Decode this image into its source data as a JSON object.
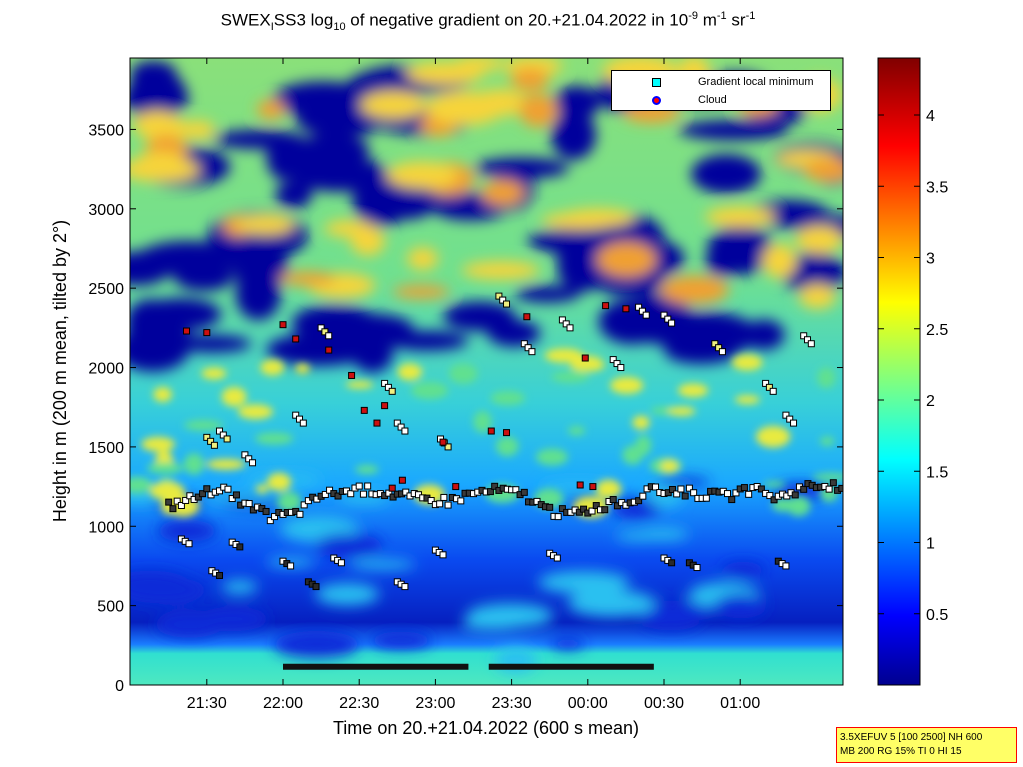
{
  "title": {
    "prefix": "SWEX",
    "sub1": "I",
    "mid": "SS3 log",
    "sub2": "10",
    "rest": " of negative gradient on 20.+21.04.2022 in 10",
    "sup1": "-9",
    "unit1": " m",
    "sup2": "-1",
    "unit2": " sr",
    "sup3": "-1"
  },
  "legend": {
    "items": [
      {
        "label": "Gradient local minimum",
        "color": "#00ffff"
      },
      {
        "label": "Cloud",
        "color": "#ff0000"
      }
    ]
  },
  "infobox": {
    "line1": "3.5XEFUV 5 [100 2500] NH 600",
    "line2": "MB 200 RG 15% TI 0 HI 15"
  },
  "chart_data": {
    "type": "heatmap",
    "xlabel": "Time on 20.+21.04.2022 (600 s mean)",
    "ylabel": "Height in m (200 m mean, tilted by 2°)",
    "x_ticks": [
      "21:30",
      "22:00",
      "22:30",
      "23:00",
      "23:30",
      "00:00",
      "00:30",
      "01:00"
    ],
    "y_ticks": [
      0,
      500,
      1000,
      1500,
      2000,
      2500,
      3000,
      3500
    ],
    "ylim": [
      0,
      3950
    ],
    "colormap": "jet",
    "colorbar_ticks": [
      0.5,
      1,
      1.5,
      2,
      2.5,
      3,
      3.5,
      4
    ],
    "colorbar_range": [
      0,
      4.4
    ],
    "gradient_minimum_layer": [
      [
        -45,
        1130
      ],
      [
        -35,
        1180
      ],
      [
        -25,
        1250
      ],
      [
        -15,
        1130
      ],
      [
        -5,
        1060
      ],
      [
        5,
        1080
      ],
      [
        15,
        1200
      ],
      [
        25,
        1220
      ],
      [
        35,
        1230
      ],
      [
        45,
        1200
      ],
      [
        55,
        1170
      ],
      [
        65,
        1160
      ],
      [
        75,
        1210
      ],
      [
        85,
        1230
      ],
      [
        95,
        1200
      ],
      [
        105,
        1090
      ],
      [
        115,
        1080
      ],
      [
        125,
        1130
      ],
      [
        135,
        1150
      ],
      [
        145,
        1220
      ],
      [
        155,
        1230
      ],
      [
        165,
        1200
      ],
      [
        175,
        1190
      ],
      [
        185,
        1230
      ],
      [
        195,
        1180
      ],
      [
        205,
        1250
      ],
      [
        215,
        1260
      ],
      [
        225,
        1180
      ],
      [
        235,
        1200
      ],
      [
        245,
        1230
      ],
      [
        255,
        1250
      ]
    ],
    "gradient_minimum_upper": [
      [
        -30,
        1560
      ],
      [
        -25,
        1600
      ],
      [
        -15,
        1450
      ],
      [
        5,
        1700
      ],
      [
        15,
        2250
      ],
      [
        40,
        1900
      ],
      [
        45,
        1650
      ],
      [
        62,
        1550
      ],
      [
        85,
        2450
      ],
      [
        95,
        2150
      ],
      [
        110,
        2300
      ],
      [
        130,
        2050
      ],
      [
        140,
        2380
      ],
      [
        150,
        2330
      ],
      [
        170,
        2150
      ],
      [
        190,
        1900
      ],
      [
        198,
        1700
      ],
      [
        205,
        2200
      ]
    ],
    "gradient_minimum_lower": [
      [
        -40,
        920
      ],
      [
        -28,
        720
      ],
      [
        -20,
        900
      ],
      [
        0,
        780
      ],
      [
        10,
        650
      ],
      [
        20,
        800
      ],
      [
        45,
        650
      ],
      [
        60,
        850
      ],
      [
        105,
        830
      ],
      [
        150,
        800
      ],
      [
        160,
        770
      ],
      [
        195,
        780
      ]
    ],
    "cloud_points": [
      [
        -38,
        2230
      ],
      [
        -30,
        2220
      ],
      [
        0,
        2270
      ],
      [
        5,
        2180
      ],
      [
        18,
        2110
      ],
      [
        27,
        1950
      ],
      [
        32,
        1730
      ],
      [
        37,
        1650
      ],
      [
        40,
        1760
      ],
      [
        43,
        1240
      ],
      [
        47,
        1290
      ],
      [
        63,
        1530
      ],
      [
        68,
        1250
      ],
      [
        82,
        1600
      ],
      [
        88,
        1590
      ],
      [
        96,
        2320
      ],
      [
        119,
        2060
      ],
      [
        127,
        2390
      ],
      [
        135,
        2370
      ],
      [
        122,
        1250
      ],
      [
        117,
        1260
      ]
    ],
    "surface_markers": [
      {
        "x_start": 0,
        "x_end": 73,
        "y": 115
      },
      {
        "x_start": 81,
        "x_end": 146,
        "y": 115
      }
    ],
    "markers": {
      "gradient_minimum": "square",
      "cloud": "square-red"
    }
  }
}
